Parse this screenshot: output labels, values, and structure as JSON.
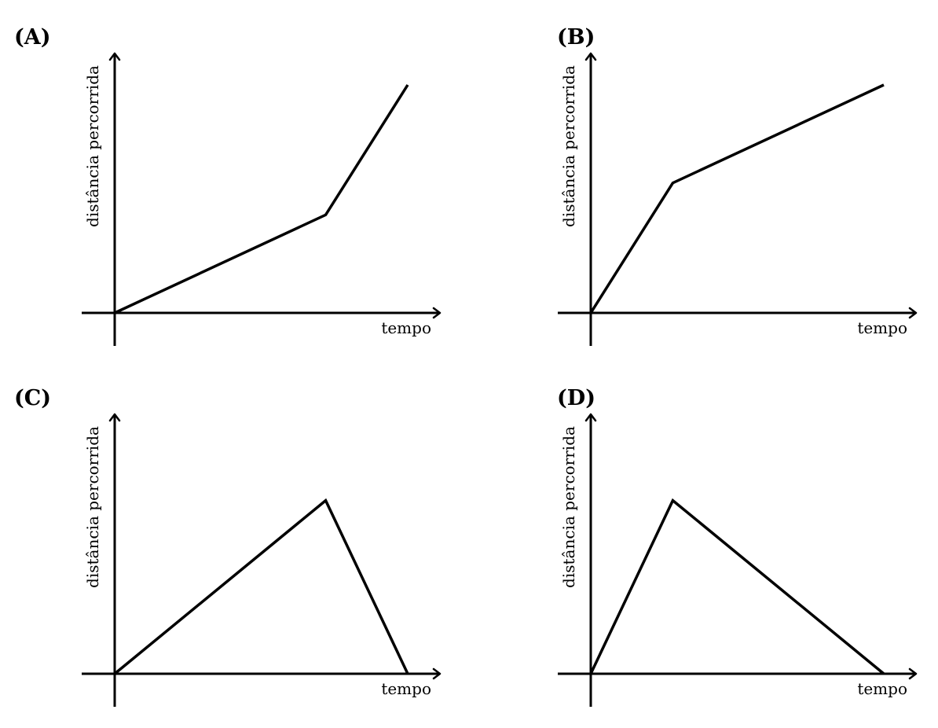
{
  "chart_data": [
    {
      "type": "line",
      "panel_label": "(A)",
      "xlabel": "tempo",
      "ylabel": "distância percorrida",
      "xlim": [
        0,
        1
      ],
      "ylim": [
        0,
        1
      ],
      "grid": false,
      "series": [
        {
          "x": [
            0,
            0.72,
            1.0
          ],
          "y": [
            0,
            0.43,
            1.0
          ]
        }
      ]
    },
    {
      "type": "line",
      "panel_label": "(B)",
      "xlabel": "tempo",
      "ylabel": "distância percorrida",
      "xlim": [
        0,
        1
      ],
      "ylim": [
        0,
        1
      ],
      "grid": false,
      "series": [
        {
          "x": [
            0,
            0.28,
            1.0
          ],
          "y": [
            0,
            0.57,
            1.0
          ]
        }
      ]
    },
    {
      "type": "line",
      "panel_label": "(C)",
      "xlabel": "tempo",
      "ylabel": "distância percorrida",
      "xlim": [
        0,
        1
      ],
      "ylim": [
        0,
        1
      ],
      "grid": false,
      "series": [
        {
          "x": [
            0,
            0.72,
            1.0
          ],
          "y": [
            0,
            0.76,
            0
          ]
        }
      ]
    },
    {
      "type": "line",
      "panel_label": "(D)",
      "xlabel": "tempo",
      "ylabel": "distância percorrida",
      "xlim": [
        0,
        1
      ],
      "ylim": [
        0,
        1
      ],
      "grid": false,
      "series": [
        {
          "x": [
            0,
            0.28,
            1.0
          ],
          "y": [
            0,
            0.76,
            0
          ]
        }
      ]
    }
  ]
}
